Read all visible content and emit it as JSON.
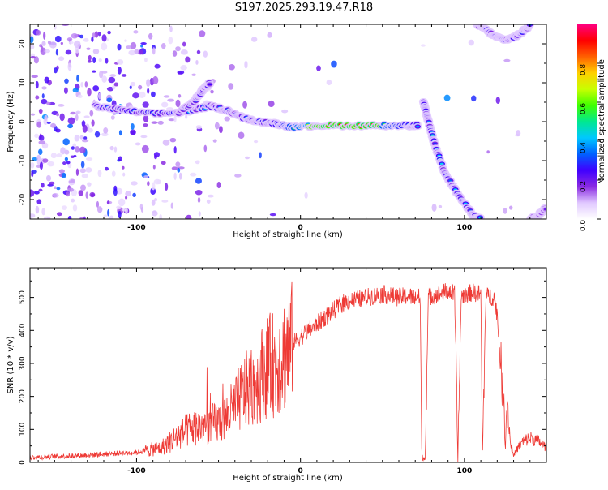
{
  "title": "S197.2025.293.19.47.R18",
  "chart_data": [
    {
      "type": "heatmap",
      "name": "spectrogram",
      "xlabel": "Height of straight line (km)",
      "ylabel": "Frequency (Hz)",
      "xlim": [
        -165,
        150
      ],
      "ylim": [
        -25,
        25
      ],
      "xticks": [
        -100,
        0,
        100
      ],
      "xtick_labels": [
        "-100",
        "0",
        "100"
      ],
      "yticks": [
        -20,
        -10,
        0,
        10,
        20
      ],
      "ytick_labels": [
        "-20",
        "-10",
        "0",
        "10",
        "20"
      ],
      "colorbar": {
        "label": "Normalized spectral amplitude",
        "range": [
          0,
          1
        ],
        "ticks": [
          0.0,
          0.2,
          0.4,
          0.6,
          0.8
        ],
        "tick_labels": [
          "0.0",
          "0.2",
          "0.4",
          "0.6",
          "0.8"
        ],
        "colors": [
          "#ffffff",
          "#e0c8ff",
          "#8a2be2",
          "#4000ff",
          "#0060ff",
          "#00c8ff",
          "#00e890",
          "#40ff00",
          "#c8ff00",
          "#ffd000",
          "#ff6000",
          "#ff0000",
          "#ff0080"
        ]
      },
      "ridges": [
        {
          "name": "main tone",
          "points": [
            [
              -125,
              4
            ],
            [
              -110,
              3
            ],
            [
              -90,
              2
            ],
            [
              -70,
              2.5
            ],
            [
              -55,
              4
            ],
            [
              -45,
              3
            ],
            [
              -35,
              1
            ],
            [
              -25,
              0
            ],
            [
              -15,
              -0.5
            ],
            [
              -5,
              -1.5
            ],
            [
              10,
              -1
            ],
            [
              30,
              -1
            ],
            [
              50,
              -1
            ],
            [
              65,
              -1
            ],
            [
              72,
              -1
            ]
          ],
          "peak_amplitude": 1.0
        },
        {
          "name": "secondary branch",
          "points": [
            [
              -75,
              2
            ],
            [
              -65,
              5
            ],
            [
              -60,
              8
            ],
            [
              -55,
              10
            ]
          ],
          "peak_amplitude": 0.4
        },
        {
          "name": "descending tone",
          "points": [
            [
              75,
              5
            ],
            [
              78,
              0
            ],
            [
              82,
              -6
            ],
            [
              88,
              -13
            ],
            [
              95,
              -18
            ],
            [
              105,
              -24
            ],
            [
              110,
              -25
            ]
          ],
          "peak_amplitude": 0.45
        },
        {
          "name": "upper tone",
          "points": [
            [
              108,
              25
            ],
            [
              112,
              24
            ],
            [
              118,
              22
            ],
            [
              125,
              21
            ],
            [
              132,
              22
            ],
            [
              138,
              24
            ],
            [
              140,
              25
            ]
          ],
          "peak_amplitude": 0.45
        },
        {
          "name": "lower corner",
          "points": [
            [
              140,
              -25
            ],
            [
              145,
              -24
            ],
            [
              150,
              -22
            ]
          ],
          "peak_amplitude": 0.3
        }
      ]
    },
    {
      "type": "line",
      "name": "snr",
      "xlabel": "Height of straight line (km)",
      "ylabel": "SNR (10 * v/v)",
      "xlim": [
        -165,
        150
      ],
      "ylim": [
        0,
        590
      ],
      "xticks": [
        -100,
        0,
        100
      ],
      "xtick_labels": [
        "-100",
        "0",
        "100"
      ],
      "yticks": [
        0,
        100,
        200,
        300,
        400,
        500
      ],
      "ytick_labels": [
        "0",
        "100",
        "200",
        "300",
        "400",
        "500"
      ],
      "color": "#ee3a35",
      "series": [
        {
          "x": [
            -165,
            -150,
            -140,
            -130,
            -120,
            -110,
            -100,
            -95,
            -90,
            -85,
            -80,
            -75,
            -70,
            -65,
            -60,
            -55,
            -50,
            -45,
            -40,
            -35,
            -30,
            -25,
            -20,
            -15,
            -10,
            -5,
            0,
            5,
            10,
            15,
            20,
            25,
            30,
            35,
            40,
            45,
            50,
            55,
            60,
            65,
            70,
            73,
            74,
            76,
            78,
            80,
            85,
            90,
            94,
            96,
            98,
            100,
            105,
            110,
            111,
            113,
            115,
            118,
            120,
            122,
            124,
            125,
            126,
            128,
            130,
            132,
            135,
            140,
            145,
            150
          ],
          "values": [
            15,
            18,
            20,
            22,
            25,
            28,
            30,
            35,
            40,
            45,
            60,
            80,
            95,
            105,
            110,
            115,
            120,
            140,
            170,
            210,
            230,
            260,
            290,
            300,
            330,
            360,
            380,
            400,
            420,
            440,
            460,
            480,
            490,
            495,
            500,
            505,
            510,
            505,
            500,
            505,
            500,
            500,
            15,
            10,
            500,
            505,
            510,
            520,
            510,
            10,
            500,
            510,
            515,
            510,
            15,
            500,
            505,
            500,
            450,
            300,
            180,
            50,
            200,
            60,
            20,
            40,
            60,
            75,
            65,
            45
          ]
        }
      ]
    }
  ]
}
